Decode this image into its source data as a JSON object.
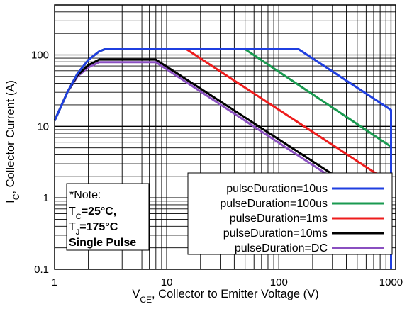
{
  "chart_data": {
    "type": "line",
    "xlabel": {
      "main": "V",
      "sub": "CE",
      "rest": ", Collector to Emitter Voltage (V)"
    },
    "ylabel": {
      "main": "I",
      "sub": "C",
      "rest": ", Collector Current (A)"
    },
    "xscale": "log",
    "yscale": "log",
    "xlim": [
      1,
      1100
    ],
    "ylim": [
      0.1,
      500
    ],
    "grid": true,
    "x_ticks": [
      {
        "value": 1,
        "label": "1"
      },
      {
        "value": 10,
        "label": "10"
      },
      {
        "value": 100,
        "label": "100"
      },
      {
        "value": 1000,
        "label": "1000"
      }
    ],
    "y_ticks": [
      {
        "value": 0.1,
        "label": "0.1"
      },
      {
        "value": 1,
        "label": "1"
      },
      {
        "value": 10,
        "label": "10"
      },
      {
        "value": 100,
        "label": "100"
      }
    ],
    "legend_position": "bottom-right",
    "series": [
      {
        "name": "pulseDuration=10us",
        "color": "#1f3fe0",
        "points": [
          [
            1,
            12
          ],
          [
            1.3,
            30
          ],
          [
            1.6,
            55
          ],
          [
            2.0,
            85
          ],
          [
            2.5,
            112
          ],
          [
            2.8,
            120
          ],
          [
            150,
            120
          ],
          [
            1000,
            17
          ],
          [
            1000,
            0.1
          ]
        ]
      },
      {
        "name": "pulseDuration=100us",
        "color": "#1a9a50",
        "points": [
          [
            1,
            12
          ],
          [
            1.3,
            30
          ],
          [
            1.6,
            55
          ],
          [
            2.0,
            85
          ],
          [
            2.5,
            112
          ],
          [
            2.8,
            120
          ],
          [
            50,
            120
          ],
          [
            1000,
            5.2
          ]
        ]
      },
      {
        "name": "pulseDuration=1ms",
        "color": "#ee1c1c",
        "points": [
          [
            1,
            12
          ],
          [
            1.3,
            30
          ],
          [
            1.6,
            55
          ],
          [
            2.0,
            85
          ],
          [
            2.5,
            112
          ],
          [
            2.8,
            120
          ],
          [
            15,
            120
          ],
          [
            1000,
            1.6
          ]
        ]
      },
      {
        "name": "pulseDuration=10ms",
        "color": "#000000",
        "points": [
          [
            1,
            12
          ],
          [
            1.3,
            30
          ],
          [
            1.6,
            52
          ],
          [
            2.0,
            72
          ],
          [
            2.5,
            86
          ],
          [
            8.0,
            86
          ],
          [
            1000,
            0.63
          ]
        ]
      },
      {
        "name": "pulseDuration=DC",
        "color": "#8a4fc0",
        "points": [
          [
            1,
            12
          ],
          [
            1.3,
            30
          ],
          [
            1.6,
            50
          ],
          [
            2.0,
            67
          ],
          [
            2.5,
            79
          ],
          [
            8.0,
            79
          ],
          [
            1000,
            0.55
          ]
        ]
      }
    ],
    "note": {
      "line1": "*Note:",
      "line2": {
        "main": "T",
        "sub": "C",
        "rest": "=25°C,"
      },
      "line3": {
        "main": "T",
        "sub": "J",
        "rest": "=175°C"
      },
      "line4": "Single Pulse"
    }
  }
}
